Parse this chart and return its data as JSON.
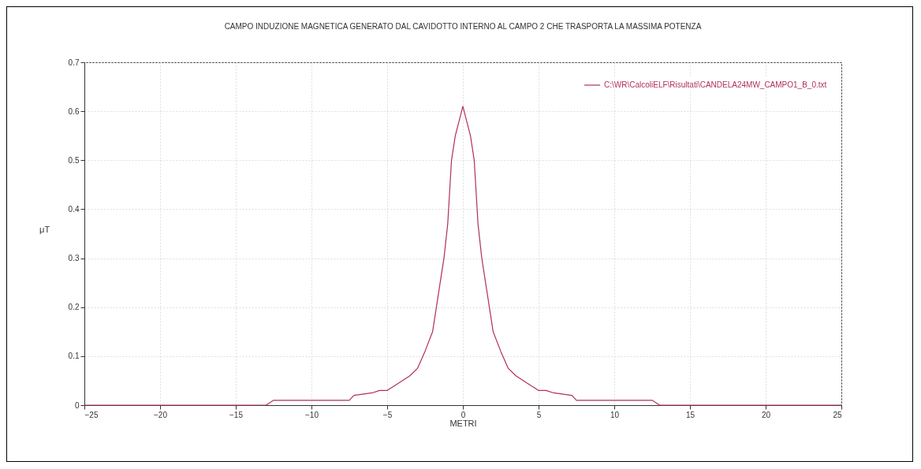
{
  "chart_data": {
    "type": "line",
    "title": "CAMPO INDUZIONE MAGNETICA GENERATO DAL CAVIDOTTO INTERNO AL CAMPO 2 CHE TRASPORTA LA MASSIMA POTENZA",
    "xlabel": "METRI",
    "ylabel": "μT",
    "x": [
      -25,
      -13,
      -12.5,
      -7.5,
      -7.2,
      -6,
      -5.5,
      -5,
      -4.5,
      -4,
      -3.5,
      -3,
      -2.5,
      -2,
      -1.5,
      -1.25,
      -1,
      -0.75,
      -0.5,
      -0.25,
      0,
      0.25,
      0.5,
      0.75,
      1,
      1.25,
      1.5,
      2,
      2.5,
      3,
      3.5,
      4,
      4.5,
      5,
      5.5,
      6,
      7.2,
      7.5,
      12.5,
      13,
      25
    ],
    "series": [
      {
        "name": "C:\\WR\\CalcoliELF\\Risultati\\CANDELA24MW_CAMPO1_B_0.txt",
        "color": "#b0305a",
        "values": [
          0,
          0,
          0.01,
          0.01,
          0.02,
          0.025,
          0.03,
          0.03,
          0.04,
          0.05,
          0.06,
          0.075,
          0.11,
          0.15,
          0.25,
          0.3,
          0.37,
          0.5,
          0.55,
          0.58,
          0.61,
          0.58,
          0.55,
          0.5,
          0.37,
          0.3,
          0.25,
          0.15,
          0.11,
          0.075,
          0.06,
          0.05,
          0.04,
          0.03,
          0.03,
          0.025,
          0.02,
          0.01,
          0.01,
          0,
          0
        ]
      }
    ],
    "xlim": [
      -25,
      25
    ],
    "xticks": [
      -25,
      -20,
      -15,
      -10,
      -5,
      0,
      5,
      10,
      15,
      20,
      25
    ],
    "ylim": [
      0,
      0.7
    ],
    "yticks": [
      0,
      0.1,
      0.2,
      0.3,
      0.4,
      0.5,
      0.6,
      0.7
    ],
    "grid": true,
    "legend": "top right",
    "marker": "none",
    "line_style": "solid"
  }
}
